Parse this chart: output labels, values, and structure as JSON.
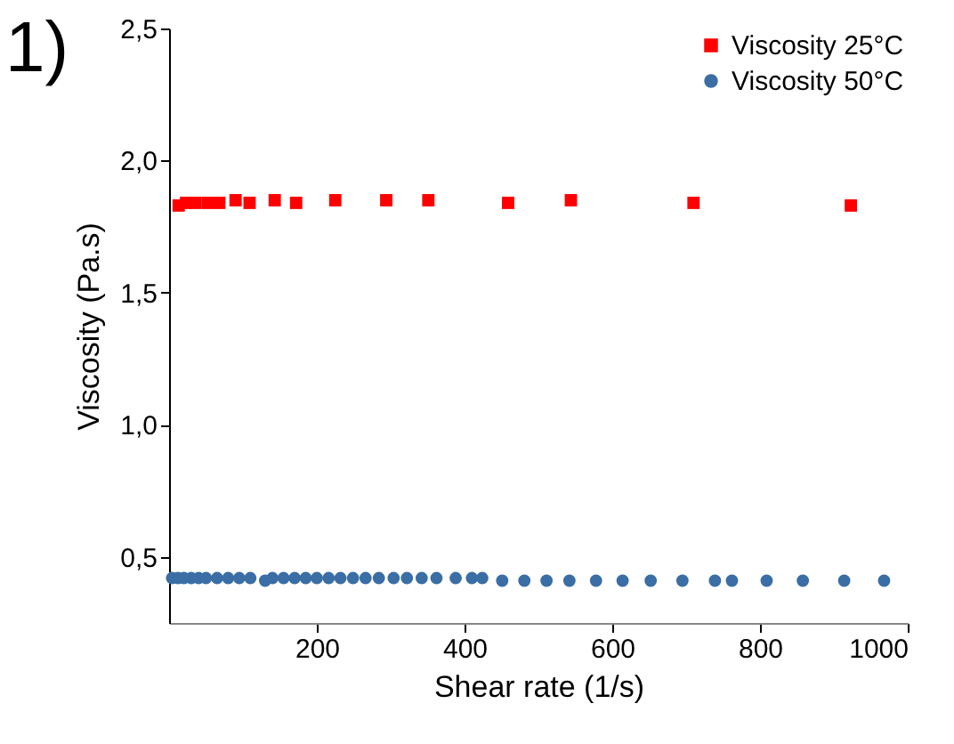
{
  "chart_data": {
    "type": "scatter",
    "xlabel": "Shear rate (1/s)",
    "ylabel": "Viscosity (Pa.s)",
    "annotations": [
      "1)"
    ],
    "xlim": [
      0,
      1000
    ],
    "xticks": [
      200,
      400,
      600,
      800,
      1000
    ],
    "ylim": [
      0.25,
      2.5
    ],
    "yticks": [
      {
        "value": 0.5,
        "label": "0,5"
      },
      {
        "value": 1.0,
        "label": "1,0"
      },
      {
        "value": 1.5,
        "label": "1,5"
      },
      {
        "value": 2.0,
        "label": "2,0"
      },
      {
        "value": 2.5,
        "label": "2,5"
      }
    ],
    "grid": false,
    "legend": "top right",
    "series": [
      {
        "name": "Viscosity 25°C",
        "color": "#ff0000",
        "marker": "square",
        "x": [
          13,
          23,
          35,
          52,
          68,
          90,
          109,
          143,
          172,
          225,
          294,
          351,
          459,
          544,
          710,
          923
        ],
        "values": [
          1.83,
          1.84,
          1.84,
          1.84,
          1.84,
          1.85,
          1.84,
          1.85,
          1.84,
          1.85,
          1.85,
          1.85,
          1.84,
          1.85,
          1.84,
          1.83
        ]
      },
      {
        "name": "Viscosity 50°C",
        "color": "#3a6ea5",
        "marker": "circle",
        "x": [
          4,
          12,
          20,
          30,
          40,
          50,
          65,
          80,
          95,
          110,
          130,
          140,
          155,
          170,
          185,
          200,
          216,
          232,
          249,
          266,
          284,
          304,
          322,
          342,
          362,
          388,
          410,
          424,
          451,
          481,
          511,
          542,
          578,
          614,
          652,
          695,
          739,
          762,
          809,
          858,
          914,
          968
        ],
        "values": [
          0.42,
          0.42,
          0.42,
          0.42,
          0.42,
          0.42,
          0.42,
          0.42,
          0.42,
          0.42,
          0.41,
          0.42,
          0.42,
          0.42,
          0.42,
          0.42,
          0.42,
          0.42,
          0.42,
          0.42,
          0.42,
          0.42,
          0.42,
          0.42,
          0.42,
          0.42,
          0.42,
          0.42,
          0.41,
          0.41,
          0.41,
          0.41,
          0.41,
          0.41,
          0.41,
          0.41,
          0.41,
          0.41,
          0.41,
          0.41,
          0.41,
          0.41
        ]
      }
    ]
  }
}
